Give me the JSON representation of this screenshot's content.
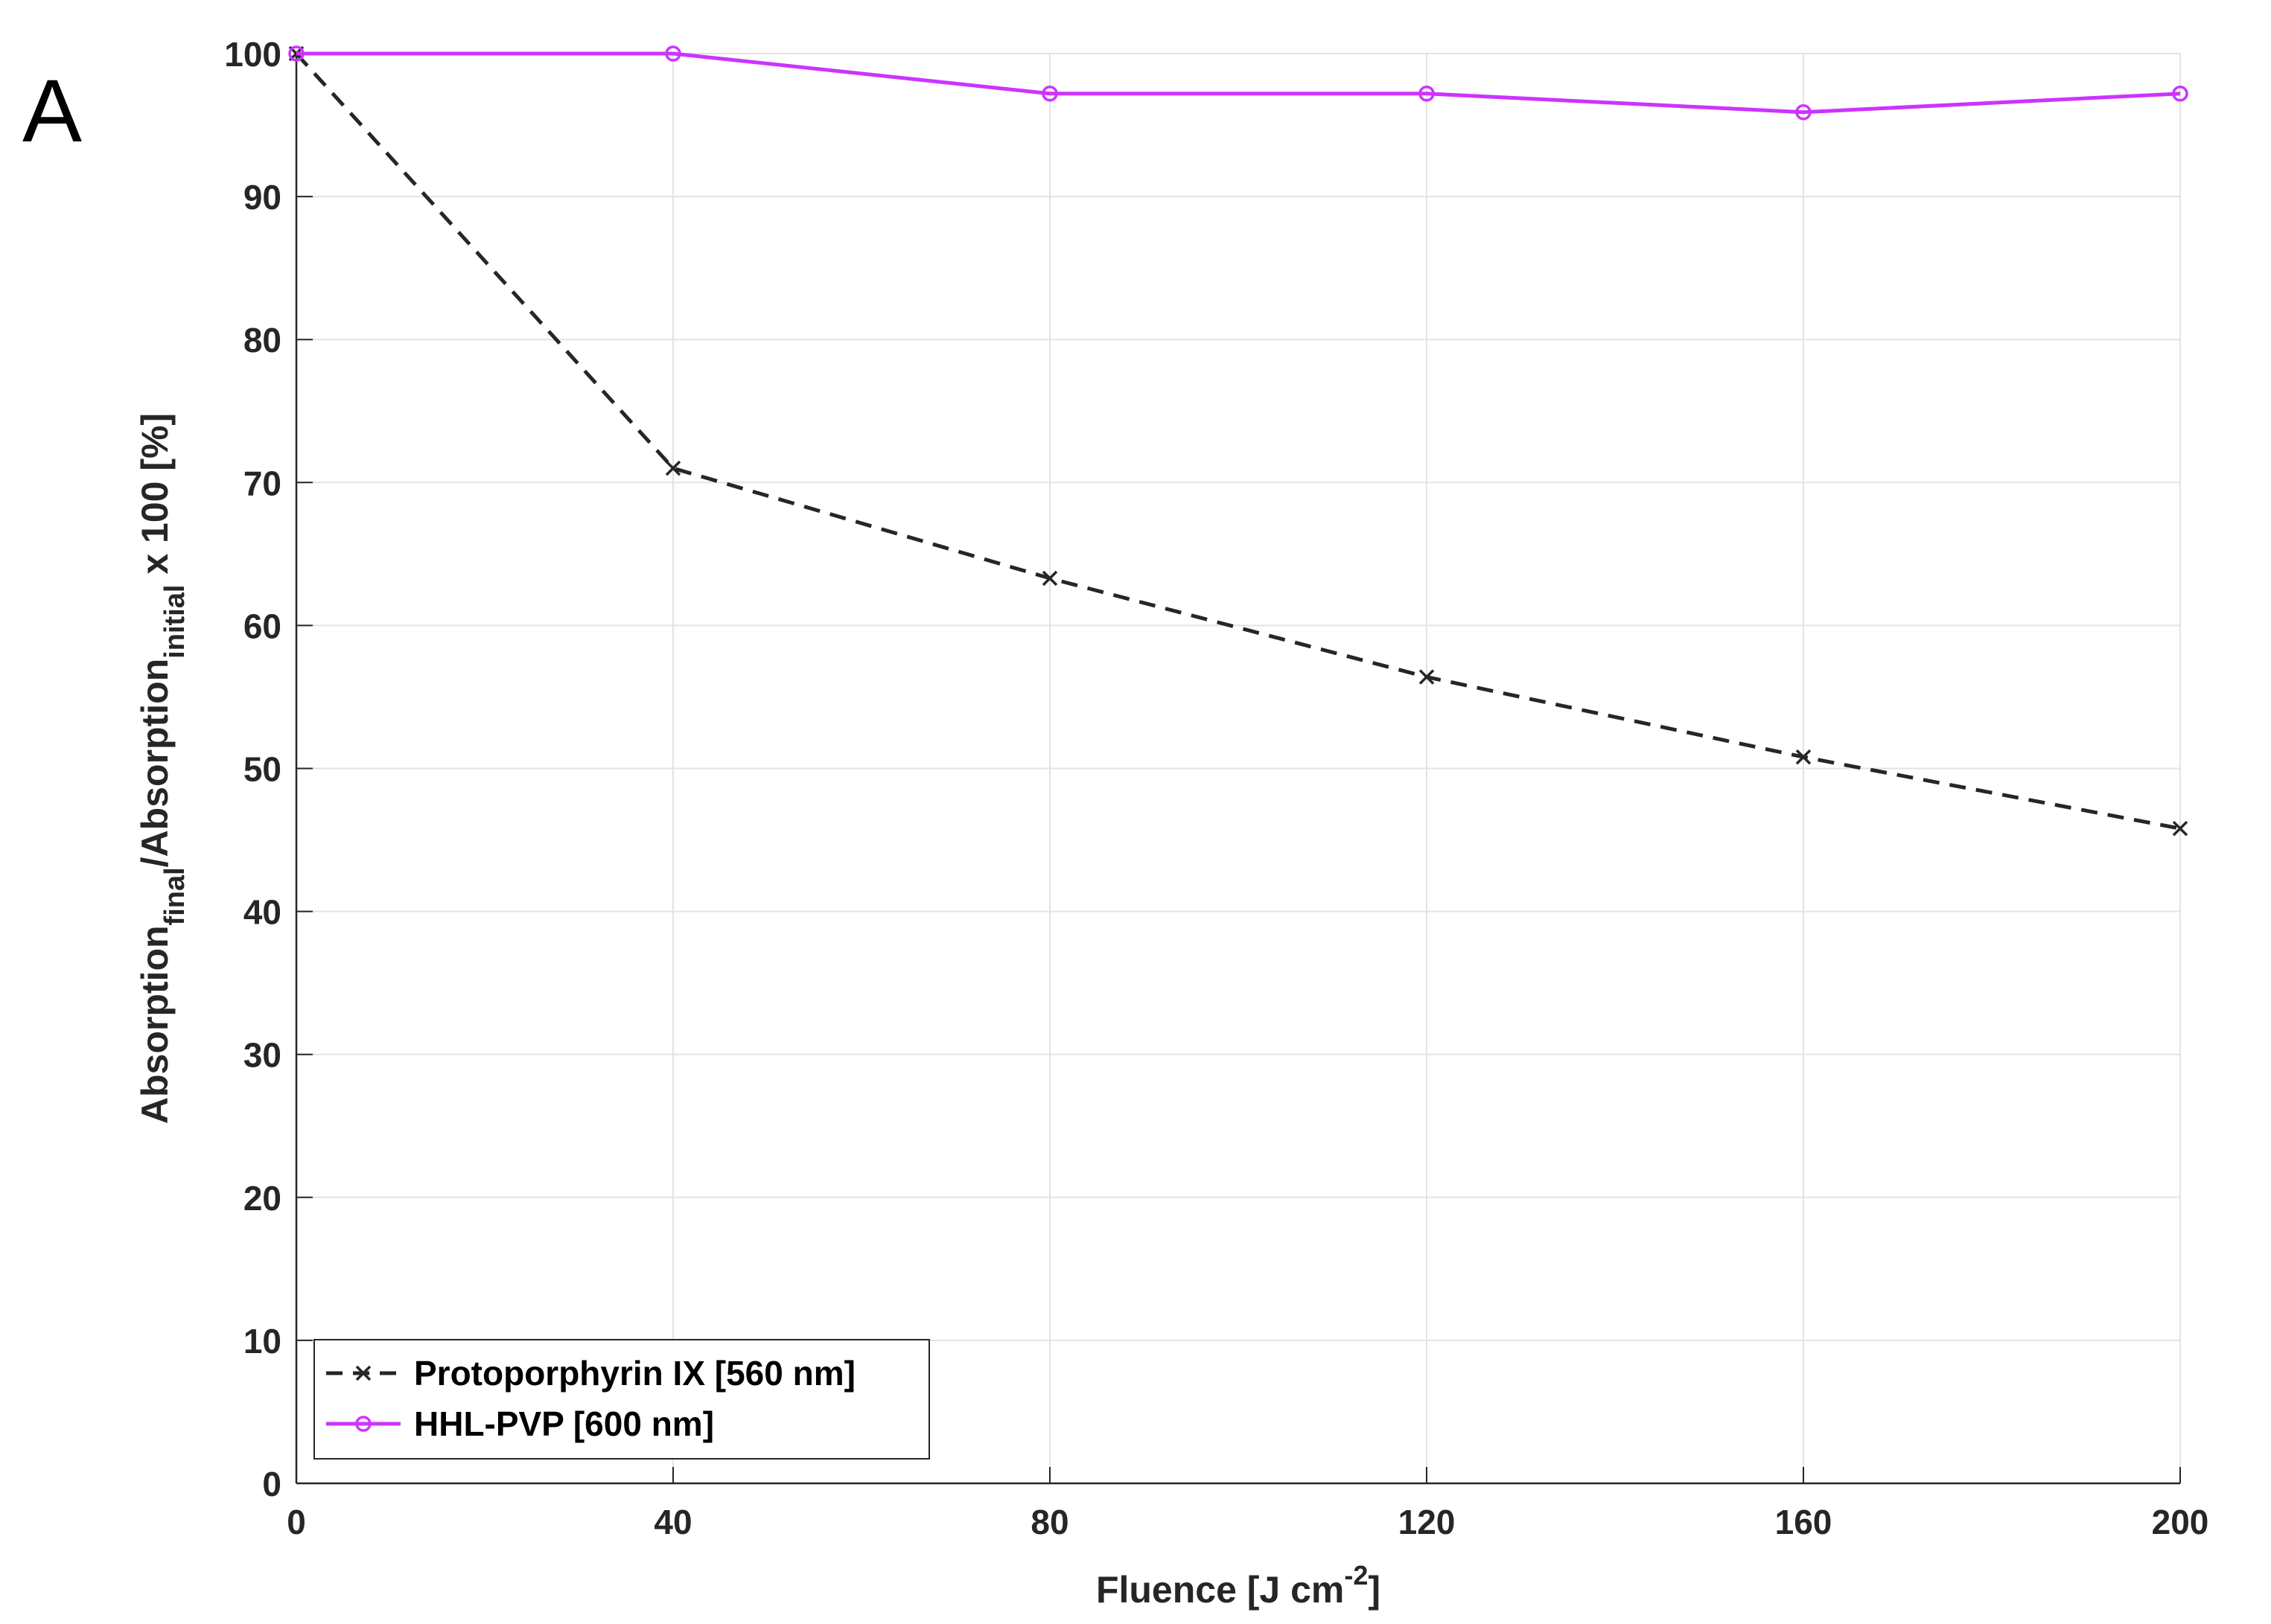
{
  "panel_label": "A",
  "chart_data": {
    "type": "line",
    "title": "",
    "xlabel": {
      "main": "Fluence [J cm",
      "sup": "-2",
      "tail": "]"
    },
    "ylabel": {
      "part1": "Absorption",
      "sub1": "final",
      "part2": "/Absorption",
      "sub2": "initial",
      "part3": " x 100 [%]"
    },
    "xlim": [
      0,
      200
    ],
    "ylim": [
      0,
      100
    ],
    "xticks": [
      0,
      40,
      80,
      120,
      160,
      200
    ],
    "yticks": [
      0,
      10,
      20,
      30,
      40,
      50,
      60,
      70,
      80,
      90,
      100
    ],
    "grid": true,
    "legend_position": "bottom-left",
    "x": [
      0,
      40,
      80,
      120,
      160,
      200
    ],
    "series": [
      {
        "name": "Protoporphyrin IX [560 nm]",
        "values": [
          100,
          71,
          63.3,
          56.4,
          50.8,
          45.8
        ],
        "color": "#262626",
        "line_style": "dashed",
        "marker": "x"
      },
      {
        "name": "HHL-PVP [600 nm]",
        "values": [
          100,
          100,
          97.2,
          97.2,
          95.9,
          97.2
        ],
        "color": "#cc33ff",
        "line_style": "solid",
        "marker": "circle"
      }
    ]
  }
}
